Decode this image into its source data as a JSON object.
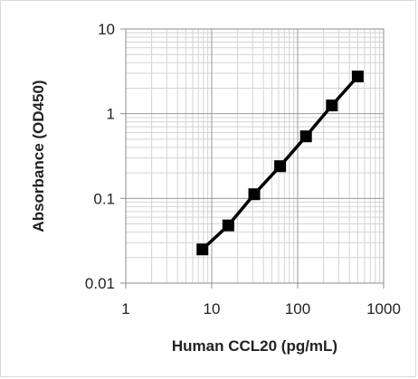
{
  "chart_data": {
    "type": "scatter",
    "title": "",
    "xlabel": "Human CCL20 (pg/mL)",
    "ylabel": "Absorbance (OD450)",
    "x_scale": "log",
    "y_scale": "log",
    "xlim": [
      1,
      1000
    ],
    "ylim": [
      0.01,
      10
    ],
    "x_ticks": [
      "1",
      "10",
      "100",
      "1000"
    ],
    "y_ticks": [
      "0.01",
      "0.1",
      "1",
      "10"
    ],
    "grid": true,
    "legend": "none",
    "series": [
      {
        "name": "",
        "color": "#000000",
        "marker": "square",
        "line": true,
        "x": [
          7.8,
          15.6,
          31.25,
          62.5,
          125,
          250,
          500
        ],
        "y": [
          0.025,
          0.048,
          0.112,
          0.24,
          0.54,
          1.25,
          2.75
        ]
      }
    ]
  }
}
